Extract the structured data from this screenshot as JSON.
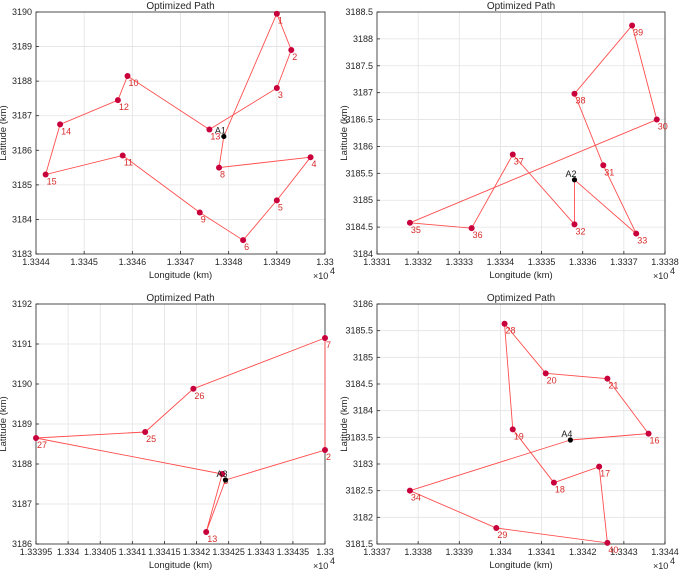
{
  "colors": {
    "path": "#ff4d4d",
    "point": "#c8003c",
    "label": "#d92b2b",
    "depot": "#000000",
    "grid": "#e3e3e3",
    "axis": "#262626"
  },
  "chart_data": [
    {
      "type": "line",
      "title": "Optimized Path",
      "xlabel": "Longitude (km)",
      "ylabel": "Latitude (km)",
      "x_exponent": "×10",
      "x_exponent_power": "4",
      "xlim": [
        1.3344,
        1.335
      ],
      "ylim": [
        3183,
        3190
      ],
      "xticks": [
        1.3344,
        1.3345,
        1.3346,
        1.3347,
        1.3348,
        1.3349,
        1.335
      ],
      "xticklabels": [
        "1.3344",
        "1.3345",
        "1.3346",
        "1.3347",
        "1.3348",
        "1.3349",
        "1.33"
      ],
      "yticks": [
        3183,
        3184,
        3185,
        3186,
        3187,
        3188,
        3189,
        3190
      ],
      "yticklabels": [
        "3183",
        "3184",
        "3185",
        "3186",
        "3187",
        "3188",
        "3189",
        "3190"
      ],
      "depot": {
        "label": "A1",
        "x": 1.33479,
        "y": 3186.4
      },
      "points": [
        {
          "label": "1",
          "x": 1.3349,
          "y": 3189.95
        },
        {
          "label": "2",
          "x": 1.33493,
          "y": 3188.9
        },
        {
          "label": "3",
          "x": 1.3349,
          "y": 3187.8
        },
        {
          "label": "4",
          "x": 1.33497,
          "y": 3185.8
        },
        {
          "label": "5",
          "x": 1.3349,
          "y": 3184.55
        },
        {
          "label": "6",
          "x": 1.33483,
          "y": 3183.4
        },
        {
          "label": "8",
          "x": 1.33478,
          "y": 3185.5
        },
        {
          "label": "9",
          "x": 1.33474,
          "y": 3184.2
        },
        {
          "label": "10",
          "x": 1.33459,
          "y": 3188.15
        },
        {
          "label": "11",
          "x": 1.33458,
          "y": 3185.85
        },
        {
          "label": "12",
          "x": 1.33457,
          "y": 3187.45
        },
        {
          "label": "13",
          "x": 1.33476,
          "y": 3186.6
        },
        {
          "label": "14",
          "x": 1.33445,
          "y": 3186.75
        },
        {
          "label": "15",
          "x": 1.33442,
          "y": 3185.3
        }
      ],
      "route": [
        "A1",
        "1",
        "2",
        "3",
        "13",
        "10",
        "12",
        "14",
        "15",
        "11",
        "9",
        "6",
        "5",
        "4",
        "8",
        "A1"
      ]
    },
    {
      "type": "line",
      "title": "Optimized Path",
      "xlabel": "Longitude (km)",
      "ylabel": "Latitude (km)",
      "x_exponent": "×10",
      "x_exponent_power": "4",
      "xlim": [
        1.3331,
        1.3338
      ],
      "ylim": [
        3184,
        3188.5
      ],
      "xticks": [
        1.3331,
        1.3332,
        1.3333,
        1.3334,
        1.3335,
        1.3336,
        1.3337,
        1.3338
      ],
      "xticklabels": [
        "1.3331",
        "1.3332",
        "1.3333",
        "1.3334",
        "1.3335",
        "1.3336",
        "1.3337",
        "1.3338"
      ],
      "yticks": [
        3184,
        3184.5,
        3185,
        3185.5,
        3186,
        3186.5,
        3187,
        3187.5,
        3188,
        3188.5
      ],
      "yticklabels": [
        "3184",
        "3184.5",
        "3185",
        "3185.5",
        "3186",
        "3186.5",
        "3187",
        "3187.5",
        "3188",
        "3188.5"
      ],
      "depot": {
        "label": "A2",
        "x": 1.33358,
        "y": 3185.38
      },
      "points": [
        {
          "label": "39",
          "x": 1.33372,
          "y": 3188.25
        },
        {
          "label": "30",
          "x": 1.33378,
          "y": 3186.5
        },
        {
          "label": "38",
          "x": 1.33358,
          "y": 3186.98
        },
        {
          "label": "31",
          "x": 1.33365,
          "y": 3185.65
        },
        {
          "label": "37",
          "x": 1.33343,
          "y": 3185.85
        },
        {
          "label": "32",
          "x": 1.33358,
          "y": 3184.55
        },
        {
          "label": "33",
          "x": 1.33373,
          "y": 3184.38
        },
        {
          "label": "35",
          "x": 1.33318,
          "y": 3184.58
        },
        {
          "label": "36",
          "x": 1.33333,
          "y": 3184.48
        }
      ],
      "route": [
        "A2",
        "32",
        "37",
        "36",
        "35",
        "30",
        "39",
        "38",
        "31",
        "33",
        "A2"
      ]
    },
    {
      "type": "line",
      "title": "Optimized Path",
      "xlabel": "Longitude (km)",
      "ylabel": "Latitude (km)",
      "x_exponent": "×10",
      "x_exponent_power": "4",
      "xlim": [
        1.33395,
        1.3344
      ],
      "ylim": [
        3186,
        3192
      ],
      "xticks": [
        1.33395,
        1.334,
        1.33405,
        1.3341,
        1.33415,
        1.3342,
        1.33425,
        1.3343,
        1.33435,
        1.3344
      ],
      "xticklabels": [
        "1.33395",
        "1.334",
        "1.33405",
        "1.3341",
        "1.33415",
        "1.3342",
        "1.33425",
        "1.3343",
        "1.33435",
        "1.33"
      ],
      "yticks": [
        3186,
        3187,
        3188,
        3189,
        3190,
        3191,
        3192
      ],
      "yticklabels": [
        "3186",
        "3187",
        "3188",
        "3189",
        "3190",
        "3191",
        "3192"
      ],
      "depot": {
        "label": "A3",
        "x": 1.334245,
        "y": 3187.6
      },
      "points": [
        {
          "label": "7",
          "x": 1.3344,
          "y": 3191.15
        },
        {
          "label": "2",
          "x": 1.3344,
          "y": 3188.35
        },
        {
          "label": "26",
          "x": 1.334195,
          "y": 3189.88
        },
        {
          "label": "25",
          "x": 1.33412,
          "y": 3188.8
        },
        {
          "label": "27",
          "x": 1.33395,
          "y": 3188.65
        },
        {
          "label": "3",
          "x": 1.33424,
          "y": 3187.75
        },
        {
          "label": "13",
          "x": 1.334215,
          "y": 3186.3
        }
      ],
      "route": [
        "A3",
        "2",
        "7",
        "26",
        "25",
        "27",
        "3",
        "13",
        "A3"
      ]
    },
    {
      "type": "line",
      "title": "Optimized Path",
      "xlabel": "Longitude (km)",
      "ylabel": "Latitude (km)",
      "x_exponent": "×10",
      "x_exponent_power": "4",
      "xlim": [
        1.3337,
        1.3344
      ],
      "ylim": [
        3181.5,
        3186
      ],
      "xticks": [
        1.3337,
        1.3338,
        1.3339,
        1.334,
        1.3341,
        1.3342,
        1.3343,
        1.3344
      ],
      "xticklabels": [
        "1.3337",
        "1.3338",
        "1.3339",
        "1.334",
        "1.3341",
        "1.3342",
        "1.3343",
        "1.3344"
      ],
      "yticks": [
        3181.5,
        3182,
        3182.5,
        3183,
        3183.5,
        3184,
        3184.5,
        3185,
        3185.5,
        3186
      ],
      "yticklabels": [
        "3181.5",
        "3182",
        "3182.5",
        "3183",
        "3183.5",
        "3184",
        "3184.5",
        "3185",
        "3185.5",
        "3186"
      ],
      "depot": {
        "label": "A4",
        "x": 1.33417,
        "y": 3183.45
      },
      "points": [
        {
          "label": "28",
          "x": 1.33401,
          "y": 3185.63
        },
        {
          "label": "20",
          "x": 1.33411,
          "y": 3184.7
        },
        {
          "label": "21",
          "x": 1.33426,
          "y": 3184.6
        },
        {
          "label": "16",
          "x": 1.33436,
          "y": 3183.57
        },
        {
          "label": "19",
          "x": 1.33403,
          "y": 3183.65
        },
        {
          "label": "17",
          "x": 1.33424,
          "y": 3182.95
        },
        {
          "label": "18",
          "x": 1.33413,
          "y": 3182.65
        },
        {
          "label": "34",
          "x": 1.33378,
          "y": 3182.5
        },
        {
          "label": "29",
          "x": 1.33399,
          "y": 3181.8
        },
        {
          "label": "40",
          "x": 1.33426,
          "y": 3181.52
        }
      ],
      "route": [
        "A4",
        "16",
        "21",
        "20",
        "28",
        "19",
        "18",
        "17",
        "40",
        "29",
        "34",
        "A4"
      ]
    }
  ]
}
